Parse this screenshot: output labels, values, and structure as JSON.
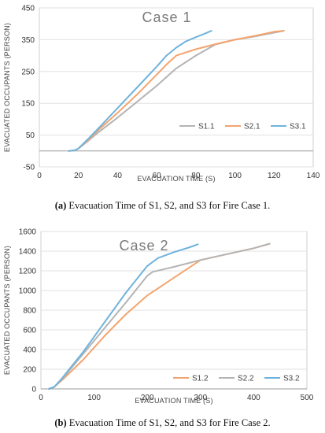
{
  "chart_data": [
    {
      "type": "line",
      "title": "Case 1",
      "xlabel": "EVACUATION TIME  (S)",
      "ylabel": "EVACUATED OCCUPANTS (PERSON)",
      "xlim": [
        0,
        140
      ],
      "ylim": [
        -50,
        450
      ],
      "xticks": [
        "0",
        "20",
        "40",
        "60",
        "80",
        "100",
        "120",
        "140"
      ],
      "yticks": [
        "-50",
        "50",
        "150",
        "250",
        "350",
        "450"
      ],
      "grid": "horizontal",
      "legend": "lower-right",
      "caption_bold": "(a)",
      "caption_text": " Evacuation Time of S1, S2, and S3 for Fire Case 1.",
      "series": [
        {
          "name": "S1.1",
          "color": "#b4b4b4",
          "x": [
            15,
            18,
            20,
            25,
            30,
            40,
            50,
            60,
            70,
            80,
            90,
            100,
            110,
            120,
            125
          ],
          "y": [
            0,
            2,
            8,
            32,
            58,
            105,
            155,
            205,
            260,
            300,
            335,
            350,
            360,
            372,
            378
          ]
        },
        {
          "name": "S2.1",
          "color": "#f4a46e",
          "x": [
            15,
            18,
            20,
            25,
            30,
            40,
            50,
            60,
            65,
            70,
            80,
            90,
            100,
            110,
            120,
            125
          ],
          "y": [
            0,
            2,
            8,
            35,
            65,
            120,
            178,
            240,
            272,
            300,
            320,
            336,
            350,
            362,
            375,
            378
          ]
        },
        {
          "name": "S3.1",
          "color": "#6fb3dd",
          "x": [
            15,
            18,
            20,
            25,
            30,
            40,
            50,
            60,
            65,
            70,
            75,
            80,
            85,
            88
          ],
          "y": [
            0,
            2,
            8,
            38,
            70,
            135,
            200,
            265,
            300,
            325,
            345,
            358,
            370,
            378
          ]
        }
      ]
    },
    {
      "type": "line",
      "title": "Case 2",
      "xlabel": "EVACUATION TIME (S)",
      "ylabel": "EVACUATED OCCUPANTS (PERSON)",
      "xlim": [
        0,
        500
      ],
      "ylim": [
        0,
        1600
      ],
      "xticks": [
        "0",
        "100",
        "200",
        "300",
        "400",
        "500"
      ],
      "yticks": [
        "0",
        "200",
        "400",
        "600",
        "800",
        "1000",
        "1200",
        "1400",
        "1600"
      ],
      "grid": "horizontal",
      "legend": "bottom-right",
      "caption_bold": "(b)",
      "caption_text": " Evacuation Time of S1, S2, and S3 for Fire Case 2.",
      "series": [
        {
          "name": "S1.2",
          "color": "#f4a46e",
          "x": [
            15,
            25,
            40,
            80,
            120,
            160,
            200,
            250,
            300,
            350,
            400,
            430
          ],
          "y": [
            0,
            20,
            90,
            300,
            540,
            760,
            950,
            1130,
            1310,
            1370,
            1430,
            1475
          ],
          "dash": ""
        },
        {
          "name": "S2.2",
          "color": "#b4b4b4",
          "x": [
            15,
            25,
            40,
            80,
            120,
            160,
            200,
            210,
            250,
            300,
            350,
            400,
            430
          ],
          "y": [
            0,
            20,
            100,
            360,
            620,
            880,
            1150,
            1190,
            1240,
            1310,
            1370,
            1430,
            1475
          ],
          "dash": ""
        },
        {
          "name": "S3.2",
          "color": "#6fb3dd",
          "x": [
            15,
            25,
            40,
            80,
            120,
            160,
            200,
            220,
            250,
            280,
            295
          ],
          "y": [
            0,
            20,
            110,
            380,
            680,
            980,
            1250,
            1330,
            1390,
            1440,
            1470
          ],
          "dash": ""
        }
      ]
    }
  ]
}
